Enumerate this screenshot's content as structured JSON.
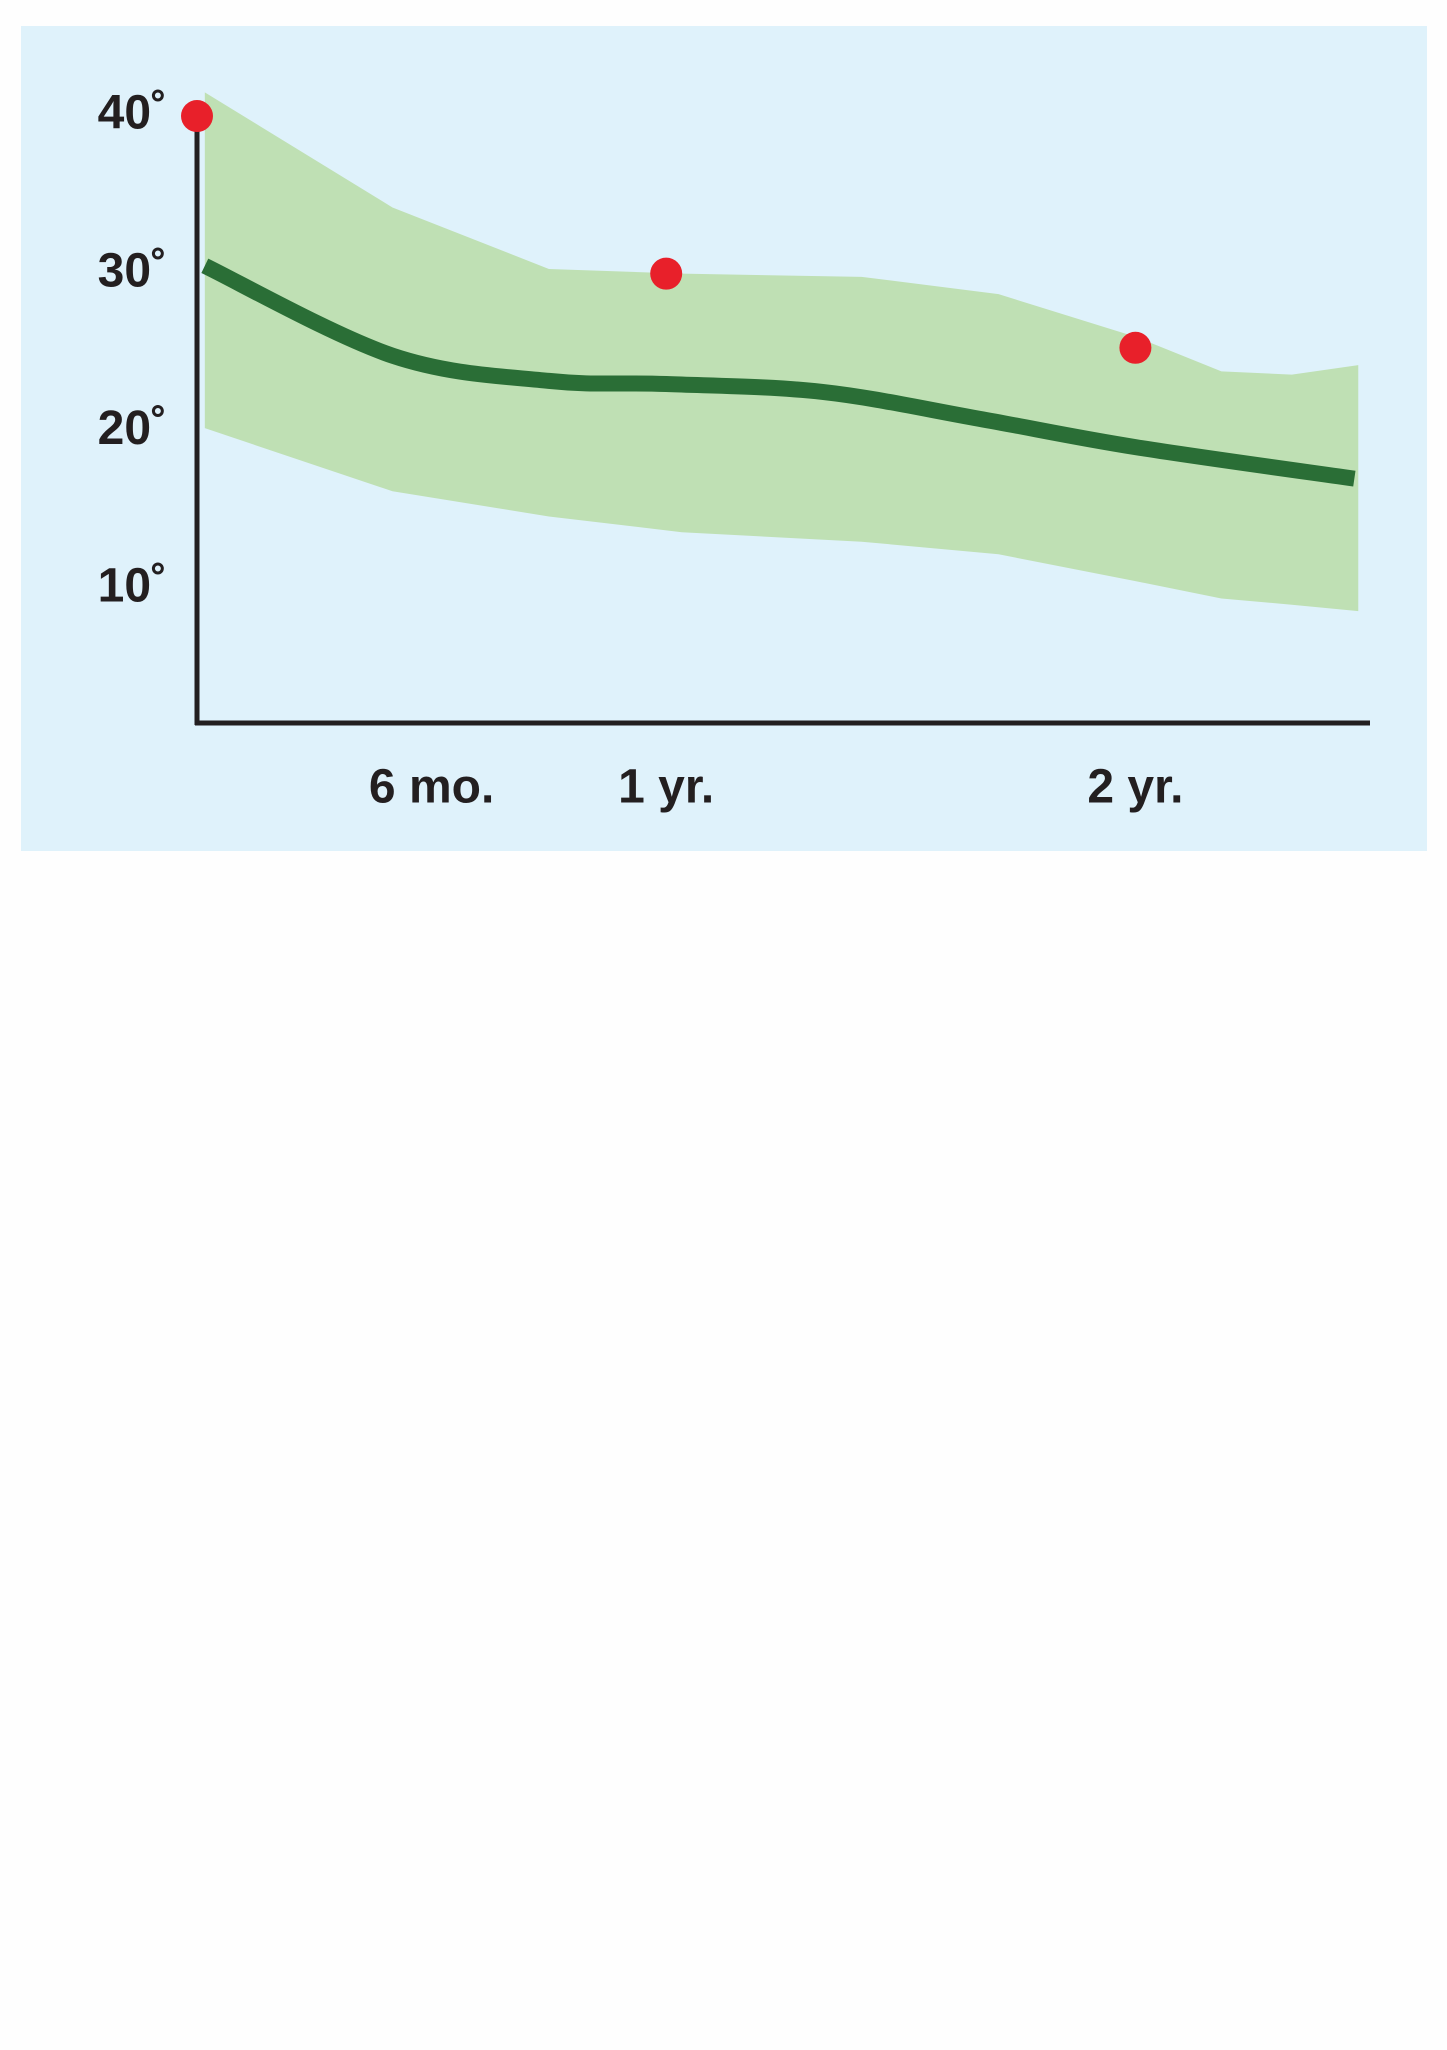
{
  "chart_data": {
    "type": "line",
    "xlim": [
      0,
      30
    ],
    "ylim": [
      1.5,
      42
    ],
    "xticks": [
      {
        "value": 6,
        "label": "6 mo."
      },
      {
        "value": 12,
        "label": "1 yr."
      },
      {
        "value": 24,
        "label": "2 yr."
      }
    ],
    "yticks": [
      {
        "value": 10,
        "label": "10˚"
      },
      {
        "value": 20,
        "label": "20˚"
      },
      {
        "value": 30,
        "label": "30˚"
      },
      {
        "value": 40,
        "label": "40˚"
      }
    ],
    "grid": false,
    "background": "#dff2fb",
    "band": {
      "color": "#bfe0b4",
      "x": [
        0.2,
        5,
        9,
        12.4,
        17,
        20.5,
        24,
        26.2,
        28,
        29.7
      ],
      "upper": [
        41.5,
        34.2,
        30.3,
        30,
        29.8,
        28.7,
        26,
        23.8,
        23.6,
        24.2
      ],
      "lower": [
        20.2,
        16.2,
        14.6,
        13.6,
        13,
        12.2,
        10.5,
        9.4,
        9,
        8.6
      ]
    },
    "series": [
      {
        "color": "#2a6e36",
        "x": [
          0.2,
          5,
          9,
          12,
          16,
          20,
          24,
          29.6
        ],
        "values": [
          30.5,
          24.8,
          23.2,
          23,
          22.5,
          20.8,
          19,
          17
        ]
      }
    ],
    "points": {
      "color": "#e8202a",
      "x": [
        0,
        12,
        24
      ],
      "values": [
        40,
        30,
        25.3
      ]
    }
  }
}
